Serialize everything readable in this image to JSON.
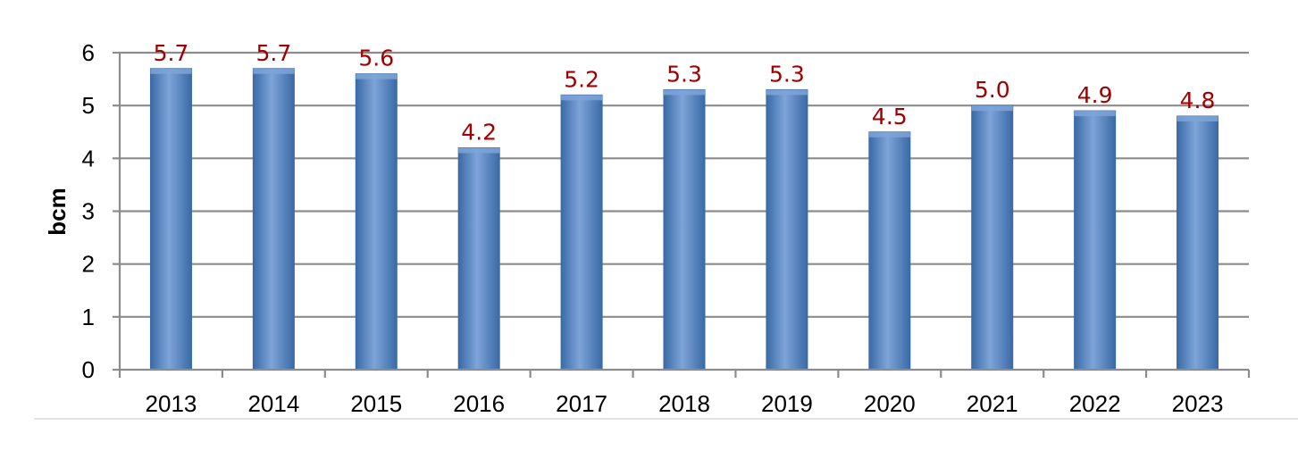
{
  "chart_data": {
    "type": "bar",
    "categories": [
      "2013",
      "2014",
      "2015",
      "2016",
      "2017",
      "2018",
      "2019",
      "2020",
      "2021",
      "2022",
      "2023"
    ],
    "values": [
      5.7,
      5.7,
      5.6,
      4.2,
      5.2,
      5.3,
      5.3,
      4.5,
      5.0,
      4.9,
      4.8
    ],
    "data_labels": [
      "5.7",
      "5.7",
      "5.6",
      "4.2",
      "5.2",
      "5.3",
      "5.3",
      "4.5",
      "5.0",
      "4.9",
      "4.8"
    ],
    "title": "",
    "xlabel": "",
    "ylabel": "bcm",
    "ylim": [
      0,
      6
    ],
    "yticks": [
      "0",
      "1",
      "2",
      "3",
      "4",
      "5",
      "6"
    ],
    "grid": true,
    "legend": "none",
    "colors": {
      "bar": "#4f81bd",
      "bar_dark": "#3a6aa6",
      "bar_light": "#7ea4d8",
      "data_label": "#a00000"
    }
  }
}
